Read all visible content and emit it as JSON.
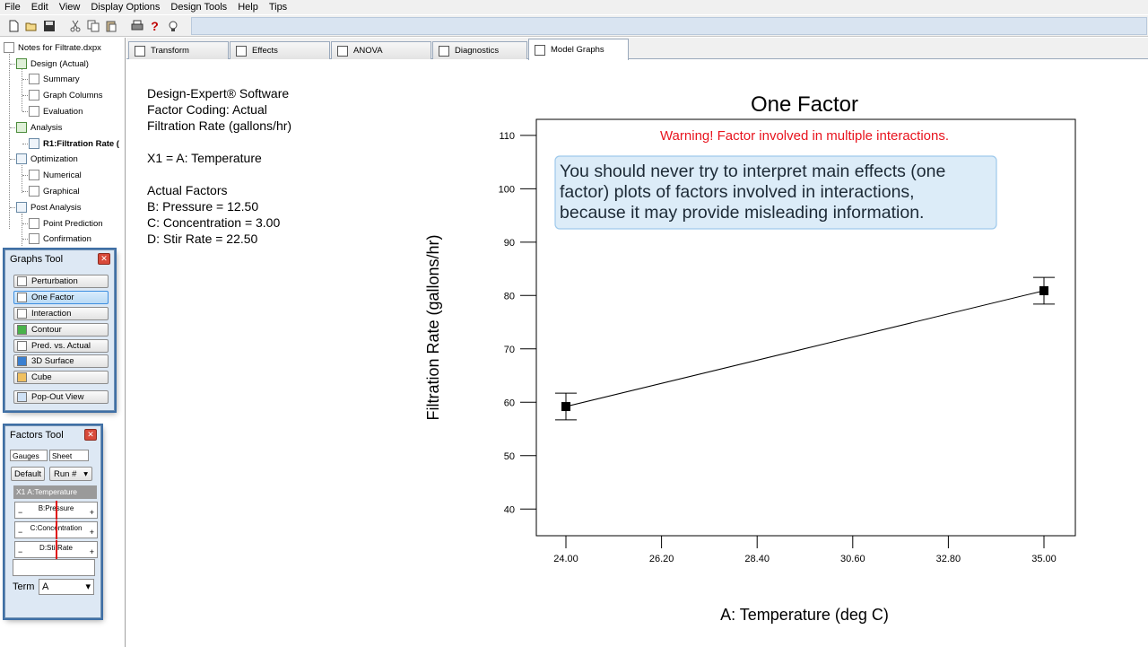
{
  "menu": [
    "File",
    "Edit",
    "View",
    "Display Options",
    "Design Tools",
    "Help",
    "Tips"
  ],
  "toolbar_icons": [
    "new-file-icon",
    "open-folder-icon",
    "save-icon",
    "cut-icon",
    "copy-icon",
    "paste-icon",
    "print-icon",
    "help-icon",
    "tip-bulb-icon"
  ],
  "tree": {
    "root": "Notes for Filtrate.dxpx",
    "design": "Design (Actual)",
    "summary": "Summary",
    "graph_columns": "Graph Columns",
    "evaluation": "Evaluation",
    "analysis": "Analysis",
    "r1": "R1:Filtration Rate (",
    "optimization": "Optimization",
    "numerical": "Numerical",
    "graphical": "Graphical",
    "post_analysis": "Post Analysis",
    "point_prediction": "Point Prediction",
    "confirmation": "Confirmation"
  },
  "graphs_tool": {
    "title": "Graphs Tool",
    "buttons": [
      "Perturbation",
      "One Factor",
      "Interaction",
      "Contour",
      "Pred. vs. Actual",
      "3D Surface",
      "Cube"
    ],
    "selected": "One Factor",
    "popout": "Pop-Out View"
  },
  "factors_tool": {
    "title": "Factors Tool",
    "tab_gauges": "Gauges",
    "tab_sheet": "Sheet",
    "default_label": "Default",
    "run_label": "Run #",
    "x1_label": "X1 A:Temperature",
    "sliders": [
      "B:Pressure",
      "C:Concentration",
      "D:StirRate"
    ],
    "term_label": "Term",
    "term_value": "A"
  },
  "tabs": [
    "Transform",
    "Effects",
    "ANOVA",
    "Diagnostics",
    "Model Graphs"
  ],
  "active_tab": "Model Graphs",
  "info": {
    "line1": "Design-Expert® Software",
    "line2": "Factor Coding: Actual",
    "line3": "Filtration Rate (gallons/hr)",
    "x1": "X1 = A: Temperature",
    "actual_header": "Actual Factors",
    "b": "B: Pressure = 12.50",
    "c": "C: Concentration = 3.00",
    "d": "D: Stir Rate = 22.50"
  },
  "chart_data": {
    "type": "line",
    "title": "One Factor",
    "xlabel": "A: Temperature (deg C)",
    "ylabel": "Filtration Rate (gallons/hr)",
    "x_ticks": [
      "24.00",
      "26.20",
      "28.40",
      "30.60",
      "32.80",
      "35.00"
    ],
    "y_ticks": [
      "40",
      "50",
      "60",
      "70",
      "80",
      "90",
      "100",
      "110"
    ],
    "xlim": [
      24.0,
      35.0
    ],
    "ylim": [
      35,
      113
    ],
    "series": [
      {
        "points": [
          {
            "x": 24.0,
            "y": 59.2,
            "low": 56.7,
            "high": 61.7
          },
          {
            "x": 35.0,
            "y": 80.9,
            "low": 78.4,
            "high": 83.4
          }
        ]
      }
    ],
    "warning": "Warning! Factor involved in multiple interactions.",
    "callout": [
      "You should never try to interpret main effects (one",
      "factor) plots of factors involved in interactions,",
      "because it may provide misleading information."
    ],
    "colors": {
      "warning": "#e8141e",
      "callout_bg": "#dcecf8",
      "callout_border": "#9ec9ec",
      "line": "#000000"
    }
  }
}
